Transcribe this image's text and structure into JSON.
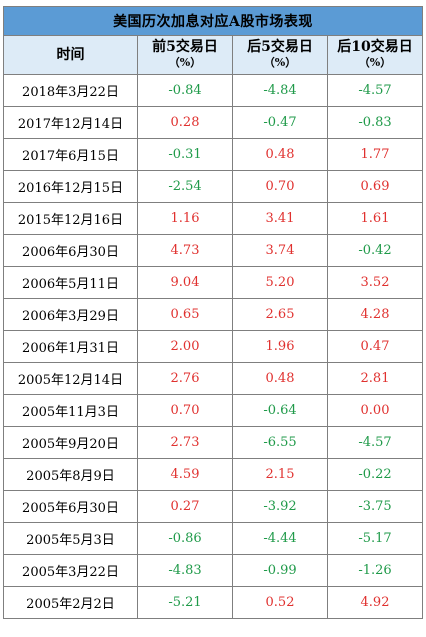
{
  "table": {
    "title": "美国历次加息对应A股市场表现",
    "headers": {
      "date": "时间",
      "pre5": "前5交易日",
      "post5": "后5交易日",
      "post10": "后10交易日",
      "unit": "（%）"
    },
    "colors": {
      "title_bg": "#5b9bd5",
      "header_bg": "#ddebf7",
      "positive": "#e0312f",
      "negative": "#1f9a49"
    },
    "rows": [
      {
        "date": "2018年3月22日",
        "pre5": "-0.84",
        "post5": "-4.84",
        "post10": "-4.57"
      },
      {
        "date": "2017年12月14日",
        "pre5": "0.28",
        "post5": "-0.47",
        "post10": "-0.83"
      },
      {
        "date": "2017年6月15日",
        "pre5": "-0.31",
        "post5": "0.48",
        "post10": "1.77"
      },
      {
        "date": "2016年12月15日",
        "pre5": "-2.54",
        "post5": "0.70",
        "post10": "0.69"
      },
      {
        "date": "2015年12月16日",
        "pre5": "1.16",
        "post5": "3.41",
        "post10": "1.61"
      },
      {
        "date": "2006年6月30日",
        "pre5": "4.73",
        "post5": "3.74",
        "post10": "-0.42"
      },
      {
        "date": "2006年5月11日",
        "pre5": "9.04",
        "post5": "5.20",
        "post10": "3.52"
      },
      {
        "date": "2006年3月29日",
        "pre5": "0.65",
        "post5": "2.65",
        "post10": "4.28"
      },
      {
        "date": "2006年1月31日",
        "pre5": "2.00",
        "post5": "1.96",
        "post10": "0.47"
      },
      {
        "date": "2005年12月14日",
        "pre5": "2.76",
        "post5": "0.48",
        "post10": "2.81"
      },
      {
        "date": "2005年11月3日",
        "pre5": "0.70",
        "post5": "-0.64",
        "post10": "0.00"
      },
      {
        "date": "2005年9月20日",
        "pre5": "2.73",
        "post5": "-6.55",
        "post10": "-4.57"
      },
      {
        "date": "2005年8月9日",
        "pre5": "4.59",
        "post5": "2.15",
        "post10": "-0.22"
      },
      {
        "date": "2005年6月30日",
        "pre5": "0.27",
        "post5": "-3.92",
        "post10": "-3.75"
      },
      {
        "date": "2005年5月3日",
        "pre5": "-0.86",
        "post5": "-4.44",
        "post10": "-5.17"
      },
      {
        "date": "2005年3月22日",
        "pre5": "-4.83",
        "post5": "-0.99",
        "post10": "-1.26"
      },
      {
        "date": "2005年2月2日",
        "pre5": "-5.21",
        "post5": "0.52",
        "post10": "4.92"
      }
    ]
  }
}
